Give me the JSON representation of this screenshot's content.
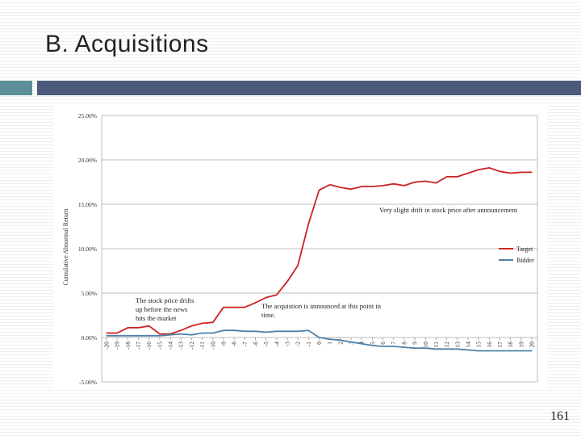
{
  "slide": {
    "title": "B. Acquisitions",
    "page_number": "161"
  },
  "colors": {
    "accent_block": "#5b9099",
    "accent_bar": "#4b5a7a",
    "target": "#cc2222",
    "bidder": "#4f81a8"
  },
  "chart_data": {
    "type": "line",
    "ylabel": "Cumulative Abnormal Return",
    "xlabel": "",
    "ylim": [
      -5,
      25
    ],
    "y_ticks": [
      {
        "value": 25,
        "label": "25.00%"
      },
      {
        "value": 20,
        "label": "20.00%"
      },
      {
        "value": 15,
        "label": "15.00%"
      },
      {
        "value": 10,
        "label": "10.00%"
      },
      {
        "value": 5,
        "label": "5.00%"
      },
      {
        "value": 0,
        "label": "0.00%"
      },
      {
        "value": -5,
        "label": "-5.00%"
      }
    ],
    "grid": true,
    "legend_position": "right",
    "x": [
      -20,
      -19,
      -18,
      -17,
      -16,
      -15,
      -14,
      -13,
      -12,
      -11,
      -10,
      -9,
      -8,
      -7,
      -6,
      -5,
      -4,
      -3,
      -2,
      -1,
      0,
      1,
      2,
      3,
      4,
      5,
      6,
      7,
      8,
      9,
      10,
      11,
      12,
      13,
      14,
      15,
      16,
      17,
      18,
      19,
      20
    ],
    "series": [
      {
        "name": "Target",
        "color": "#cc2222",
        "values": [
          0.5,
          0.5,
          1.1,
          1.1,
          1.3,
          0.4,
          0.4,
          0.8,
          1.3,
          1.6,
          1.7,
          3.4,
          3.4,
          3.4,
          3.9,
          4.5,
          4.8,
          6.3,
          8.1,
          12.8,
          16.6,
          17.2,
          16.9,
          16.7,
          17.0,
          17.0,
          17.1,
          17.3,
          17.1,
          17.5,
          17.6,
          17.4,
          18.1,
          18.1,
          18.5,
          18.9,
          19.1,
          18.7,
          18.5,
          18.6,
          18.6
        ]
      },
      {
        "name": "Bidder",
        "color": "#4f81a8",
        "values": [
          0.2,
          0.2,
          0.2,
          0.2,
          0.2,
          0.2,
          0.3,
          0.4,
          0.3,
          0.5,
          0.5,
          0.8,
          0.8,
          0.7,
          0.7,
          0.6,
          0.7,
          0.7,
          0.7,
          0.8,
          0.0,
          -0.2,
          -0.3,
          -0.5,
          -0.7,
          -0.9,
          -1.0,
          -1.0,
          -1.1,
          -1.2,
          -1.2,
          -1.3,
          -1.3,
          -1.3,
          -1.4,
          -1.5,
          -1.5,
          -1.5,
          -1.5,
          -1.5,
          -1.5
        ]
      }
    ],
    "annotations": [
      {
        "text": "Very slight drift in stock price after announcement"
      },
      {
        "text_lines": [
          "The stock price drifts",
          "up before the news",
          "hits the market"
        ]
      },
      {
        "text_lines": [
          "The acquistion is announced at this point in",
          "time."
        ]
      }
    ]
  }
}
